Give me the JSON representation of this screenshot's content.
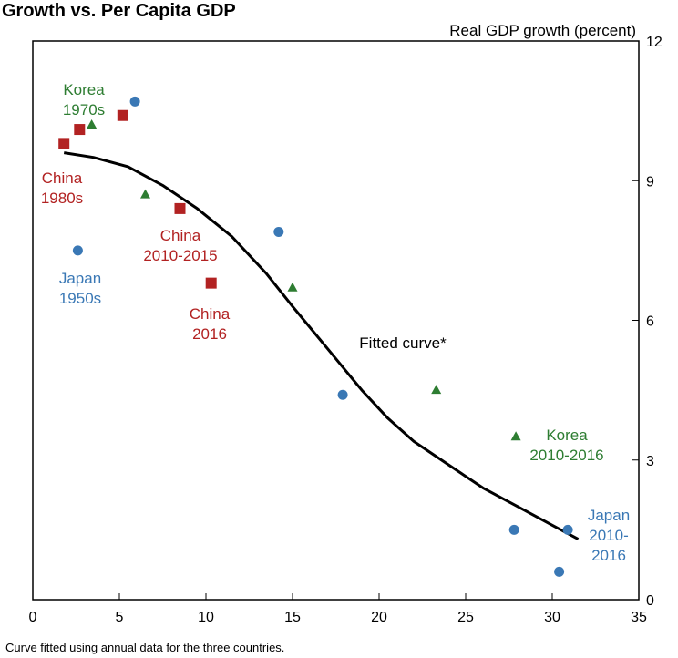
{
  "chart_data": {
    "type": "scatter",
    "title": "Growth vs. Per Capita GDP",
    "ylabel": "Real GDP growth (percent)",
    "xlabel": "",
    "xlim": [
      0,
      35
    ],
    "ylim": [
      0,
      12
    ],
    "x_ticks": [
      "0",
      "5",
      "10",
      "15",
      "20",
      "25",
      "30",
      "35"
    ],
    "y_ticks": [
      "0",
      "3",
      "6",
      "9",
      "12"
    ],
    "grid": false,
    "colors": {
      "China": "#b22222",
      "Japan": "#3a78b5",
      "Korea": "#2e7d32",
      "curve": "#000000"
    },
    "series": [
      {
        "name": "China",
        "marker": "square",
        "points": [
          [
            1.8,
            9.8
          ],
          [
            2.7,
            10.1
          ],
          [
            5.2,
            10.4
          ],
          [
            8.5,
            8.4
          ],
          [
            10.3,
            6.8
          ]
        ]
      },
      {
        "name": "Japan",
        "marker": "circle",
        "points": [
          [
            5.9,
            10.7
          ],
          [
            2.6,
            7.5
          ],
          [
            14.2,
            7.9
          ],
          [
            17.9,
            4.4
          ],
          [
            27.8,
            1.5
          ],
          [
            30.9,
            1.5
          ],
          [
            30.4,
            0.6
          ]
        ]
      },
      {
        "name": "Korea",
        "marker": "triangle",
        "points": [
          [
            3.4,
            10.2
          ],
          [
            6.5,
            8.7
          ],
          [
            15.0,
            6.7
          ],
          [
            23.3,
            4.5
          ],
          [
            27.9,
            3.5
          ]
        ]
      }
    ],
    "fitted_curve": [
      [
        1.8,
        9.6
      ],
      [
        3.5,
        9.5
      ],
      [
        5.5,
        9.3
      ],
      [
        7.5,
        8.9
      ],
      [
        9.5,
        8.4
      ],
      [
        11.5,
        7.8
      ],
      [
        13.5,
        7.0
      ],
      [
        15.0,
        6.3
      ],
      [
        17.0,
        5.4
      ],
      [
        19.0,
        4.5
      ],
      [
        20.5,
        3.9
      ],
      [
        22.0,
        3.4
      ],
      [
        24.0,
        2.9
      ],
      [
        26.0,
        2.4
      ],
      [
        28.0,
        2.0
      ],
      [
        30.0,
        1.6
      ],
      [
        31.5,
        1.3
      ]
    ],
    "annotations": [
      {
        "key": "korea_1970s",
        "lines": [
          "Korea",
          "1970s"
        ],
        "color": "#2e7d32"
      },
      {
        "key": "china_1980s",
        "lines": [
          "China",
          "1980s"
        ],
        "color": "#b22222"
      },
      {
        "key": "china_2010_2015",
        "lines": [
          "China",
          "2010-2015"
        ],
        "color": "#b22222"
      },
      {
        "key": "japan_1950s",
        "lines": [
          "Japan",
          "1950s"
        ],
        "color": "#3a78b5"
      },
      {
        "key": "china_2016",
        "lines": [
          "China",
          "2016"
        ],
        "color": "#b22222"
      },
      {
        "key": "fitted_curve",
        "lines": [
          "Fitted curve*"
        ],
        "color": "#000000"
      },
      {
        "key": "korea_2010_2016",
        "lines": [
          "Korea",
          "2010-2016"
        ],
        "color": "#2e7d32"
      },
      {
        "key": "japan_2010_2016",
        "lines": [
          "Japan",
          "2010-",
          "2016"
        ],
        "color": "#3a78b5"
      }
    ],
    "footnote": "Curve fitted using annual data for the three countries."
  }
}
